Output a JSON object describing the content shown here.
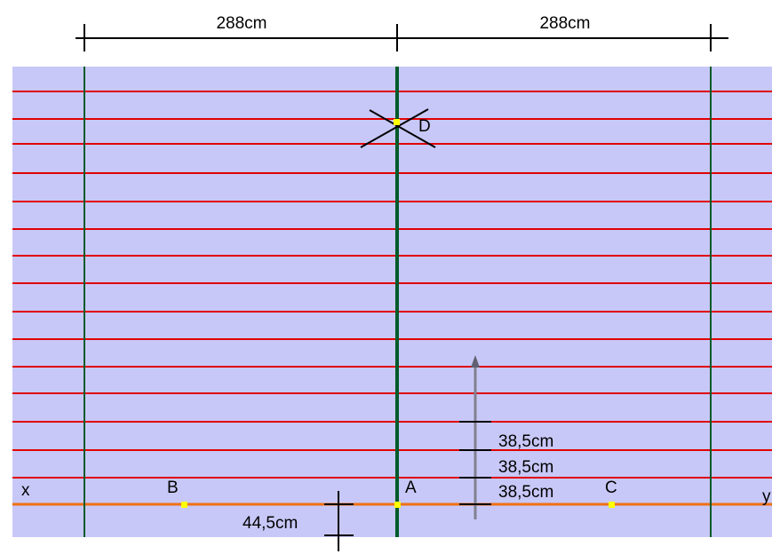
{
  "dimensions": {
    "top_left": "288cm",
    "top_right": "288cm",
    "bottom_offset": "44,5cm",
    "spacing_1": "38,5cm",
    "spacing_2": "38,5cm",
    "spacing_3": "38,5cm"
  },
  "points": {
    "a": "A",
    "b": "B",
    "c": "C",
    "d": "D"
  },
  "axis": {
    "start": "x",
    "end": "y"
  },
  "colors": {
    "field": "#c8c8f8",
    "horizontal_lines": "#e00000",
    "vertical_lines": "#005a2a",
    "baseline": "#f07010",
    "points": "#ffff00",
    "arrow": "#808090",
    "ink": "#000000"
  }
}
